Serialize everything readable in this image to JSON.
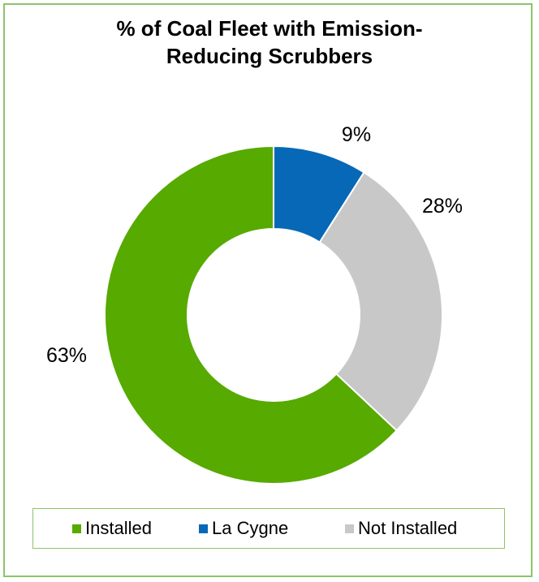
{
  "chart_data": {
    "type": "pie",
    "subtype": "donut",
    "title_lines": [
      "% of Coal Fleet with Emission-",
      "Reducing Scrubbers"
    ],
    "slices": [
      {
        "name": "La Cygne",
        "value": 9,
        "label": "9%",
        "color": "#0868b8"
      },
      {
        "name": "Not Installed",
        "value": 28,
        "label": "28%",
        "color": "#c8c8c8"
      },
      {
        "name": "Installed",
        "value": 63,
        "label": "63%",
        "color": "#56aa00"
      }
    ],
    "legend": {
      "placement": "bottom",
      "items": [
        {
          "label": "Installed",
          "color": "#56aa00"
        },
        {
          "label": "La Cygne",
          "color": "#0868b8"
        },
        {
          "label": "Not Installed",
          "color": "#c8c8c8"
        }
      ]
    }
  }
}
